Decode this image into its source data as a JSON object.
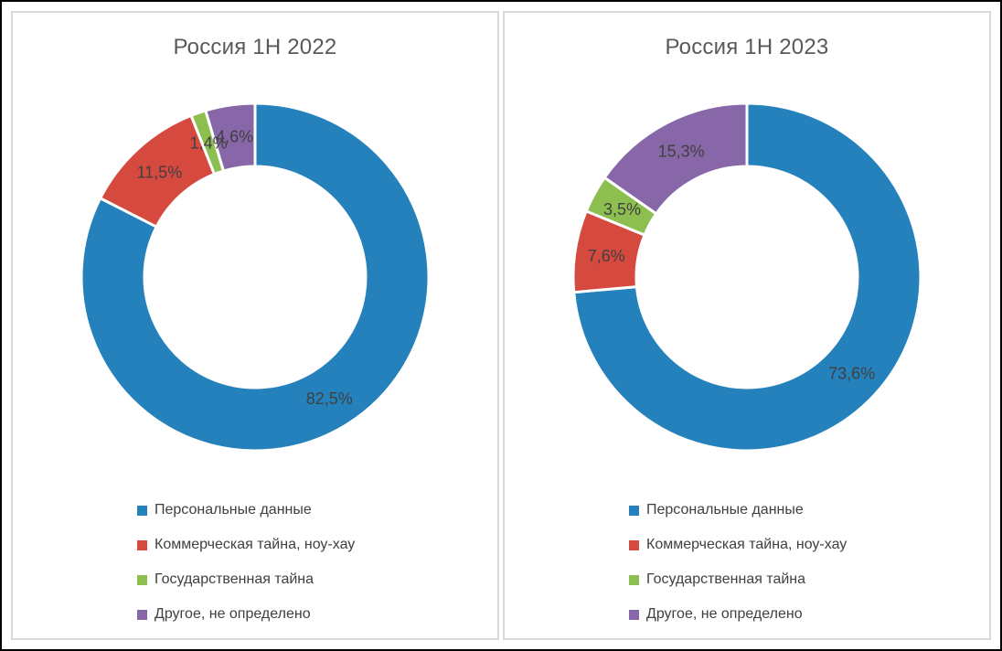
{
  "page": {
    "background_color": "#FFFFFF",
    "frame_border_color": "#000000",
    "panel_border_color": "#D9D9D9",
    "title_color": "#595959",
    "text_color": "#404040"
  },
  "chart_data": [
    {
      "type": "pie",
      "subtype": "donut",
      "title": "Россия 1Н 2022",
      "labels": [
        "Персональные данные",
        "Коммерческая тайна, ноу-хау",
        "Государственная тайна",
        "Другое, не определено"
      ],
      "values": [
        82.5,
        11.5,
        1.4,
        4.6
      ],
      "value_labels": [
        "82,5%",
        "11,5%",
        "1,4%",
        "4,6%"
      ],
      "colors": [
        "#2581BC",
        "#D6493F",
        "#8DBE50",
        "#8767A8"
      ],
      "start_angle_deg": 0,
      "direction": "clockwise",
      "legend_position": "bottom-left",
      "grid": false
    },
    {
      "type": "pie",
      "subtype": "donut",
      "title": "Россия 1Н 2023",
      "labels": [
        "Персональные данные",
        "Коммерческая тайна, ноу-хау",
        "Государственная тайна",
        "Другое, не определено"
      ],
      "values": [
        73.6,
        7.6,
        3.5,
        15.3
      ],
      "value_labels": [
        "73,6%",
        "7,6%",
        "3,5%",
        "15,3%"
      ],
      "colors": [
        "#2581BC",
        "#D6493F",
        "#8DBE50",
        "#8767A8"
      ],
      "start_angle_deg": 0,
      "direction": "clockwise",
      "legend_position": "bottom-left",
      "grid": false
    }
  ]
}
